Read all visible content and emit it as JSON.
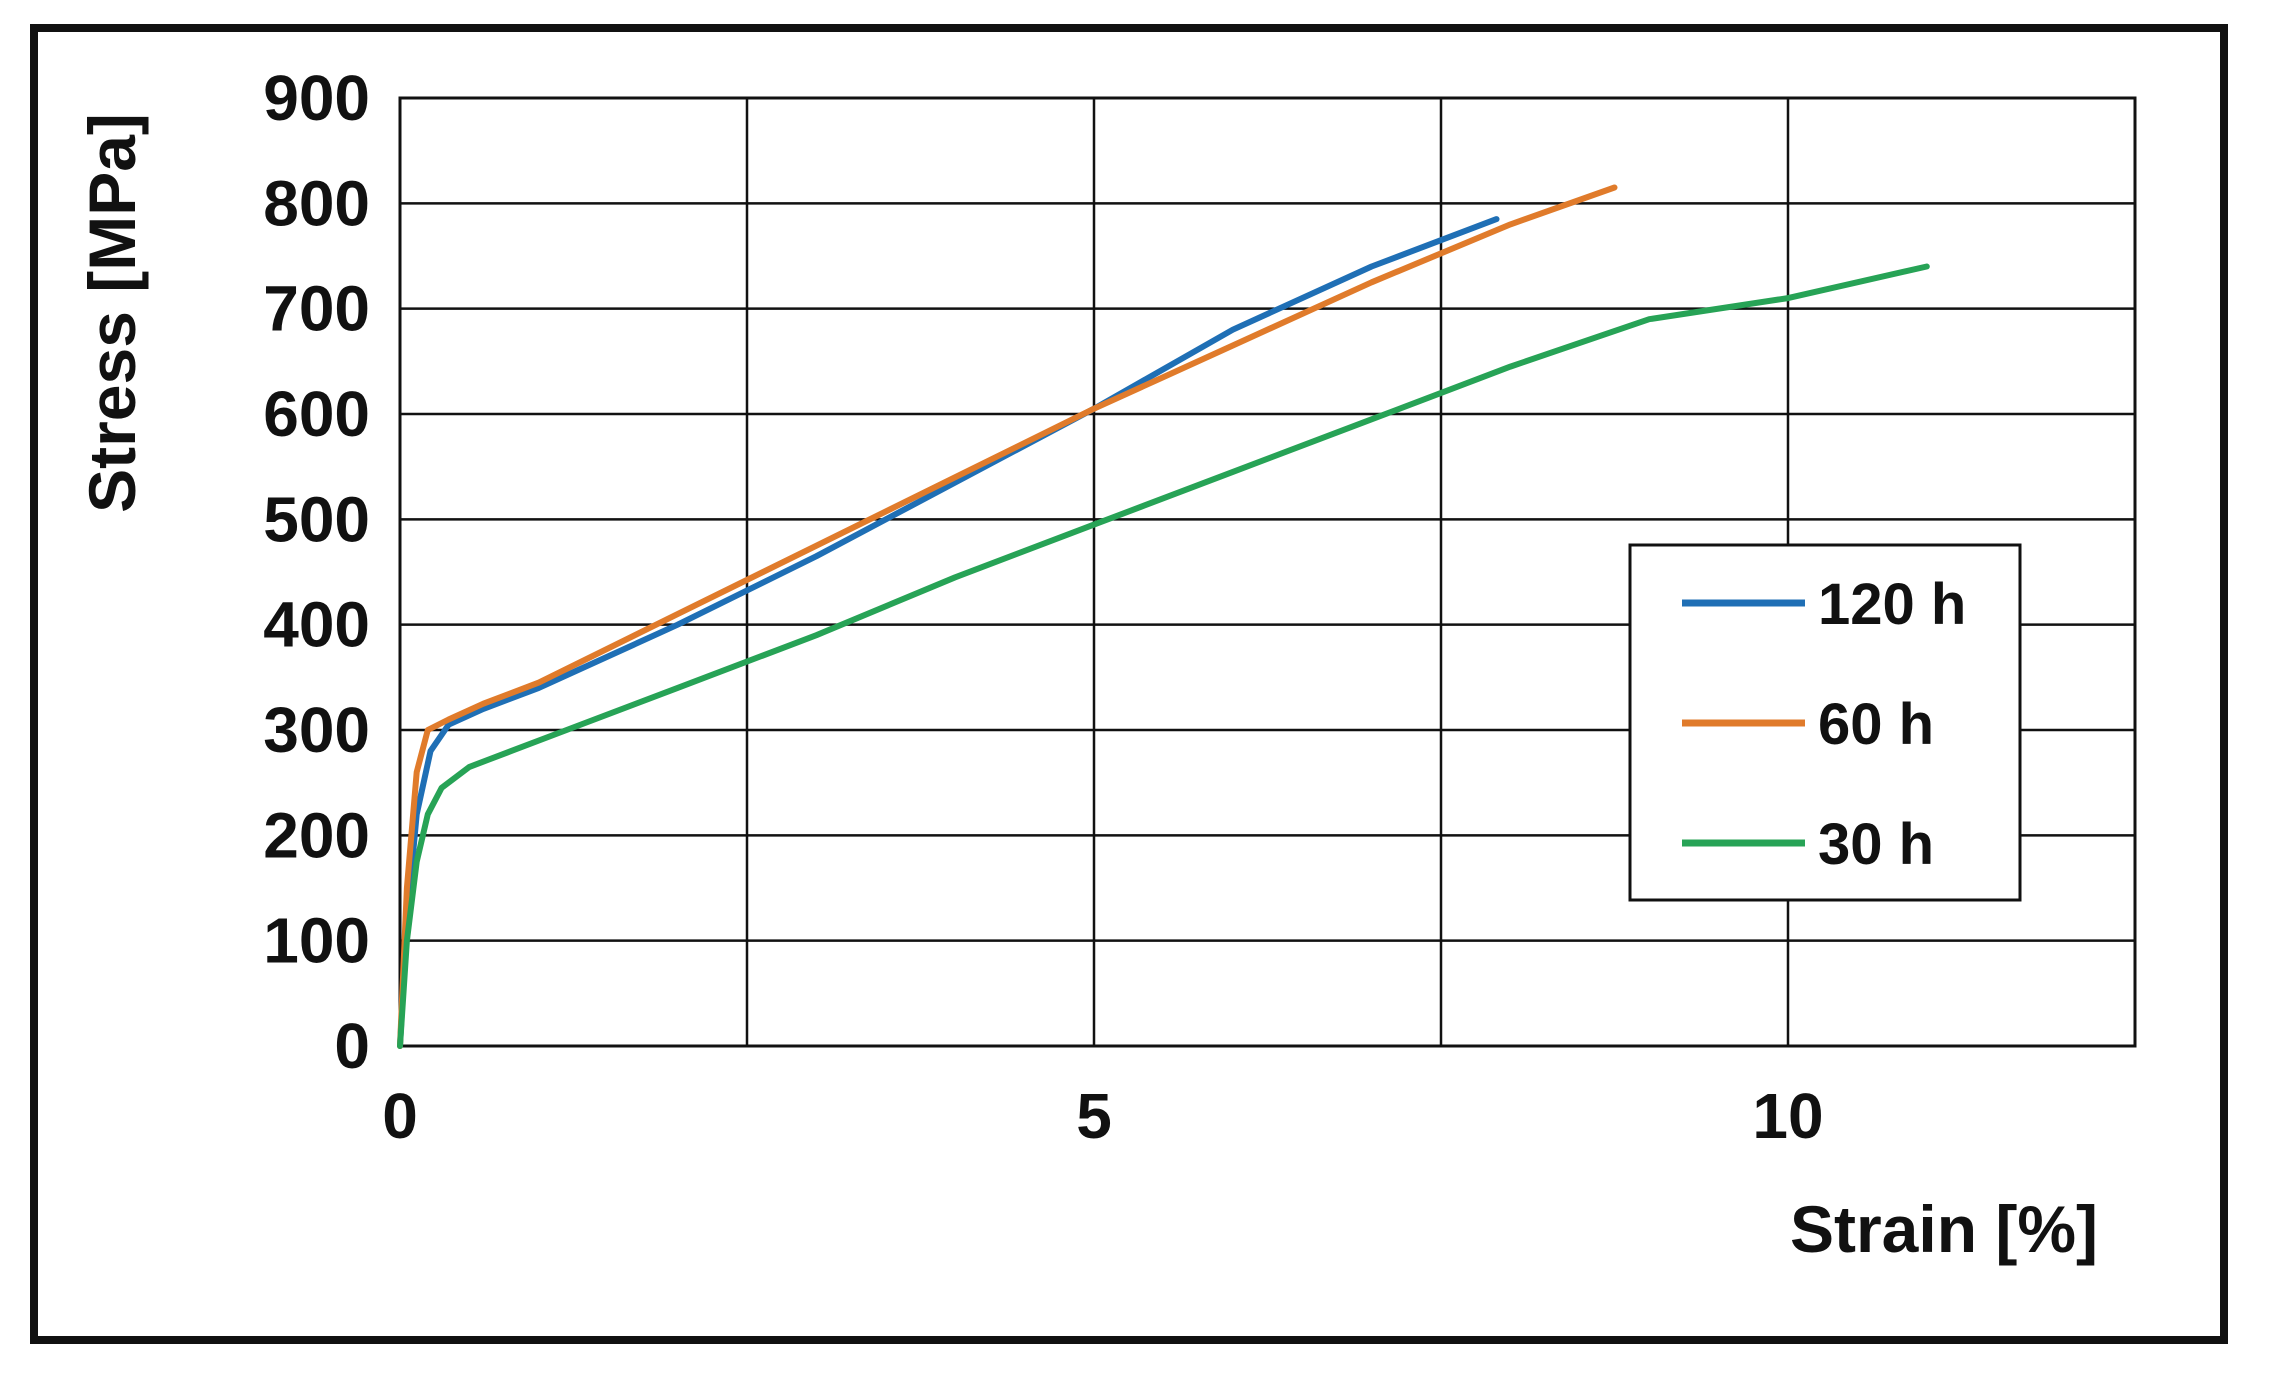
{
  "chart_data": {
    "type": "line",
    "title": "",
    "xlabel": "Strain [%]",
    "ylabel": "Stress [MPa]",
    "xlim": [
      0,
      12.5
    ],
    "ylim": [
      0,
      900
    ],
    "x_ticks": [
      0,
      5,
      10
    ],
    "x_tick_labels": [
      "0",
      "5",
      "10"
    ],
    "x_gridlines": [
      0,
      2.5,
      5,
      7.5,
      10,
      12.5
    ],
    "y_ticks": [
      0,
      100,
      200,
      300,
      400,
      500,
      600,
      700,
      800,
      900
    ],
    "y_tick_labels": [
      "0",
      "100",
      "200",
      "300",
      "400",
      "500",
      "600",
      "700",
      "800",
      "900"
    ],
    "grid": true,
    "legend_position": "right",
    "series": [
      {
        "name": "120 h",
        "color": "#1f6fb5",
        "x": [
          0,
          0.05,
          0.12,
          0.22,
          0.35,
          0.6,
          1.0,
          2.0,
          3.0,
          4.0,
          5.0,
          6.0,
          7.0,
          7.9
        ],
        "y": [
          0,
          120,
          220,
          280,
          305,
          320,
          340,
          400,
          465,
          535,
          605,
          680,
          740,
          785
        ]
      },
      {
        "name": "60 h",
        "color": "#e07b2b",
        "x": [
          0,
          0.05,
          0.12,
          0.2,
          0.35,
          0.6,
          1.0,
          2.0,
          3.0,
          4.0,
          5.0,
          6.0,
          7.0,
          8.0,
          8.75
        ],
        "y": [
          0,
          150,
          260,
          300,
          310,
          325,
          345,
          410,
          475,
          540,
          605,
          665,
          725,
          780,
          815
        ]
      },
      {
        "name": "30 h",
        "color": "#27a356",
        "x": [
          0,
          0.05,
          0.12,
          0.2,
          0.3,
          0.5,
          0.8,
          1.2,
          2.0,
          3.0,
          4.0,
          5.0,
          6.0,
          7.0,
          8.0,
          9.0,
          10.0,
          11.0
        ],
        "y": [
          0,
          100,
          175,
          220,
          245,
          265,
          280,
          300,
          340,
          390,
          445,
          495,
          545,
          595,
          645,
          690,
          710,
          740
        ]
      }
    ]
  }
}
